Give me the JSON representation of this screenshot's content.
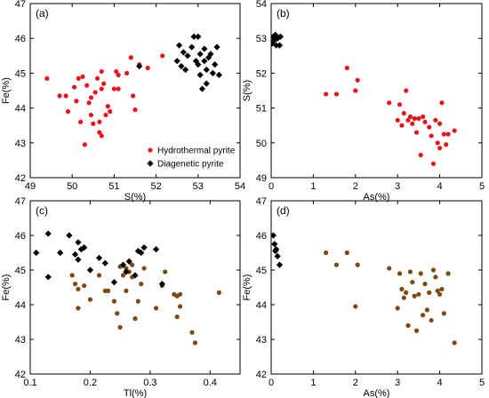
{
  "chart_data": [
    {
      "type": "scatter",
      "panel_label": "(a)",
      "xlabel": "S(%)",
      "ylabel": "Fe(%)",
      "xlim": [
        49,
        54
      ],
      "ylim": [
        42,
        47
      ],
      "xticks": [
        49,
        50,
        51,
        52,
        53,
        54
      ],
      "yticks": [
        42,
        43,
        44,
        45,
        46,
        47
      ],
      "grid": false,
      "legend_position": "bottom-right",
      "series": [
        {
          "name": "Hydrothermal pyrite",
          "marker": "circle",
          "color": "#e8141b",
          "points": [
            [
              49.4,
              44.85
            ],
            [
              49.7,
              44.35
            ],
            [
              49.85,
              44.35
            ],
            [
              49.9,
              43.9
            ],
            [
              50.05,
              44.6
            ],
            [
              50.1,
              44.2
            ],
            [
              50.15,
              44.85
            ],
            [
              50.2,
              43.6
            ],
            [
              50.25,
              44.9
            ],
            [
              50.3,
              42.95
            ],
            [
              50.35,
              44.65
            ],
            [
              50.4,
              44.15
            ],
            [
              50.45,
              43.8
            ],
            [
              50.45,
              44.3
            ],
            [
              50.5,
              43.55
            ],
            [
              50.55,
              44.45
            ],
            [
              50.6,
              44.85
            ],
            [
              50.65,
              43.3
            ],
            [
              50.65,
              43.6
            ],
            [
              50.7,
              43.2
            ],
            [
              50.7,
              44.55
            ],
            [
              50.7,
              45.05
            ],
            [
              50.75,
              44.7
            ],
            [
              50.8,
              43.8
            ],
            [
              50.85,
              44.05
            ],
            [
              50.9,
              43.9
            ],
            [
              51.0,
              44.55
            ],
            [
              51.05,
              45.05
            ],
            [
              51.1,
              44.95
            ],
            [
              51.1,
              44.55
            ],
            [
              51.3,
              45.0
            ],
            [
              51.4,
              45.45
            ],
            [
              51.45,
              44.35
            ],
            [
              51.5,
              43.95
            ],
            [
              51.6,
              45.25
            ],
            [
              51.8,
              45.15
            ],
            [
              52.15,
              45.5
            ]
          ]
        },
        {
          "name": "Diagenetic pyrite",
          "marker": "diamond",
          "color": "#000000",
          "points": [
            [
              51.6,
              45.2
            ],
            [
              52.5,
              45.35
            ],
            [
              52.55,
              45.8
            ],
            [
              52.6,
              45.2
            ],
            [
              52.65,
              45.6
            ],
            [
              52.7,
              45.1
            ],
            [
              52.75,
              45.5
            ],
            [
              52.85,
              45.75
            ],
            [
              52.9,
              46.05
            ],
            [
              52.95,
              45.35
            ],
            [
              53.0,
              45.25
            ],
            [
              53.0,
              46.05
            ],
            [
              53.05,
              44.95
            ],
            [
              53.05,
              45.55
            ],
            [
              53.1,
              44.55
            ],
            [
              53.15,
              45.35
            ],
            [
              53.15,
              45.7
            ],
            [
              53.2,
              44.7
            ],
            [
              53.2,
              45.1
            ],
            [
              53.25,
              45.45
            ],
            [
              53.3,
              45.55
            ],
            [
              53.35,
              45.0
            ],
            [
              53.4,
              45.25
            ],
            [
              53.45,
              45.75
            ],
            [
              53.5,
              44.95
            ]
          ]
        }
      ]
    },
    {
      "type": "scatter",
      "panel_label": "(b)",
      "xlabel": "As(%)",
      "ylabel": "S(%)",
      "xlim": [
        0,
        5
      ],
      "ylim": [
        49,
        54
      ],
      "xticks": [
        0,
        1,
        2,
        3,
        4,
        5
      ],
      "yticks": [
        49,
        50,
        51,
        52,
        53,
        54
      ],
      "grid": false,
      "series": [
        {
          "name": "Hydrothermal pyrite",
          "marker": "circle",
          "color": "#e8141b",
          "points": [
            [
              1.3,
              51.4
            ],
            [
              1.55,
              51.4
            ],
            [
              1.8,
              52.15
            ],
            [
              2.0,
              51.5
            ],
            [
              2.05,
              51.8
            ],
            [
              2.8,
              51.15
            ],
            [
              3.0,
              50.65
            ],
            [
              3.05,
              51.1
            ],
            [
              3.1,
              50.5
            ],
            [
              3.15,
              50.85
            ],
            [
              3.2,
              51.5
            ],
            [
              3.25,
              50.65
            ],
            [
              3.3,
              50.75
            ],
            [
              3.35,
              50.55
            ],
            [
              3.4,
              50.7
            ],
            [
              3.45,
              50.3
            ],
            [
              3.5,
              50.7
            ],
            [
              3.55,
              49.65
            ],
            [
              3.6,
              50.75
            ],
            [
              3.65,
              50.6
            ],
            [
              3.75,
              50.45
            ],
            [
              3.8,
              50.2
            ],
            [
              3.85,
              49.4
            ],
            [
              3.9,
              50.65
            ],
            [
              3.95,
              50.0
            ],
            [
              4.0,
              49.85
            ],
            [
              4.0,
              50.55
            ],
            [
              4.05,
              51.15
            ],
            [
              4.1,
              50.25
            ],
            [
              4.15,
              49.95
            ],
            [
              4.2,
              50.25
            ],
            [
              4.35,
              50.35
            ]
          ]
        },
        {
          "name": "Diagenetic pyrite",
          "marker": "diamond",
          "color": "#000000",
          "points": [
            [
              0.02,
              52.85
            ],
            [
              0.05,
              53.05
            ],
            [
              0.08,
              52.95
            ],
            [
              0.1,
              53.1
            ],
            [
              0.12,
              52.8
            ],
            [
              0.15,
              53.0
            ],
            [
              0.2,
              52.8
            ],
            [
              0.22,
              53.05
            ]
          ]
        }
      ]
    },
    {
      "type": "scatter",
      "panel_label": "(c)",
      "xlabel": "Tl(%)",
      "ylabel": "Fe(%)",
      "xlim": [
        0.1,
        0.45
      ],
      "ylim": [
        42,
        47
      ],
      "xticks": [
        0.1,
        0.2,
        0.3,
        0.4
      ],
      "yticks": [
        42,
        43,
        44,
        45,
        46,
        47
      ],
      "grid": false,
      "series": [
        {
          "name": "Hydrothermal pyrite",
          "marker": "circle",
          "color": "#7a4a10",
          "points": [
            [
              0.17,
              44.85
            ],
            [
              0.175,
              44.6
            ],
            [
              0.18,
              43.9
            ],
            [
              0.18,
              44.45
            ],
            [
              0.19,
              44.55
            ],
            [
              0.2,
              44.15
            ],
            [
              0.215,
              44.85
            ],
            [
              0.225,
              44.4
            ],
            [
              0.23,
              44.4
            ],
            [
              0.24,
              44.1
            ],
            [
              0.245,
              43.75
            ],
            [
              0.25,
              43.35
            ],
            [
              0.25,
              45.1
            ],
            [
              0.255,
              44.85
            ],
            [
              0.26,
              44.4
            ],
            [
              0.26,
              45.05
            ],
            [
              0.265,
              44.95
            ],
            [
              0.27,
              44.8
            ],
            [
              0.27,
              45.15
            ],
            [
              0.275,
              43.6
            ],
            [
              0.28,
              44.1
            ],
            [
              0.285,
              44.6
            ],
            [
              0.29,
              45.05
            ],
            [
              0.31,
              43.9
            ],
            [
              0.32,
              44.55
            ],
            [
              0.325,
              44.95
            ],
            [
              0.34,
              44.3
            ],
            [
              0.345,
              44.25
            ],
            [
              0.345,
              43.65
            ],
            [
              0.35,
              43.95
            ],
            [
              0.35,
              44.3
            ],
            [
              0.37,
              43.2
            ],
            [
              0.375,
              42.9
            ],
            [
              0.415,
              44.35
            ]
          ]
        },
        {
          "name": "Diagenetic pyrite",
          "marker": "diamond",
          "color": "#000000",
          "points": [
            [
              0.11,
              45.5
            ],
            [
              0.13,
              46.05
            ],
            [
              0.13,
              44.8
            ],
            [
              0.15,
              45.5
            ],
            [
              0.165,
              46.0
            ],
            [
              0.175,
              45.45
            ],
            [
              0.18,
              45.8
            ],
            [
              0.18,
              45.3
            ],
            [
              0.185,
              45.6
            ],
            [
              0.19,
              45.65
            ],
            [
              0.2,
              45.0
            ],
            [
              0.215,
              45.35
            ],
            [
              0.225,
              45.2
            ],
            [
              0.24,
              44.65
            ],
            [
              0.255,
              45.15
            ],
            [
              0.26,
              44.95
            ],
            [
              0.265,
              45.25
            ],
            [
              0.275,
              44.85
            ],
            [
              0.28,
              45.55
            ],
            [
              0.285,
              45.5
            ],
            [
              0.29,
              45.65
            ],
            [
              0.31,
              45.6
            ],
            [
              0.32,
              44.6
            ]
          ]
        }
      ]
    },
    {
      "type": "scatter",
      "panel_label": "(d)",
      "xlabel": "As(%)",
      "ylabel": "Fe(%)",
      "xlim": [
        0,
        5
      ],
      "ylim": [
        42,
        47
      ],
      "xticks": [
        0,
        1,
        2,
        3,
        4,
        5
      ],
      "yticks": [
        42,
        43,
        44,
        45,
        46,
        47
      ],
      "grid": false,
      "series": [
        {
          "name": "Hydrothermal pyrite",
          "marker": "circle",
          "color": "#7a4a10",
          "points": [
            [
              1.3,
              45.5
            ],
            [
              1.55,
              45.15
            ],
            [
              1.8,
              45.5
            ],
            [
              2.0,
              43.95
            ],
            [
              2.05,
              45.15
            ],
            [
              2.8,
              45.05
            ],
            [
              3.0,
              43.9
            ],
            [
              3.05,
              44.9
            ],
            [
              3.1,
              44.45
            ],
            [
              3.15,
              44.2
            ],
            [
              3.2,
              44.35
            ],
            [
              3.25,
              43.4
            ],
            [
              3.3,
              44.95
            ],
            [
              3.35,
              44.65
            ],
            [
              3.4,
              44.25
            ],
            [
              3.45,
              43.25
            ],
            [
              3.5,
              44.3
            ],
            [
              3.55,
              44.9
            ],
            [
              3.6,
              43.7
            ],
            [
              3.65,
              44.6
            ],
            [
              3.7,
              43.85
            ],
            [
              3.75,
              44.35
            ],
            [
              3.8,
              43.55
            ],
            [
              3.85,
              45.0
            ],
            [
              3.9,
              44.8
            ],
            [
              3.95,
              44.4
            ],
            [
              4.0,
              44.3
            ],
            [
              4.05,
              44.45
            ],
            [
              4.1,
              43.75
            ],
            [
              4.2,
              44.9
            ],
            [
              4.35,
              42.9
            ]
          ]
        },
        {
          "name": "Diagenetic pyrite",
          "marker": "diamond",
          "color": "#000000",
          "points": [
            [
              0.05,
              46.0
            ],
            [
              0.08,
              45.75
            ],
            [
              0.1,
              45.55
            ],
            [
              0.12,
              45.6
            ],
            [
              0.15,
              45.4
            ],
            [
              0.2,
              45.15
            ]
          ]
        }
      ]
    }
  ]
}
